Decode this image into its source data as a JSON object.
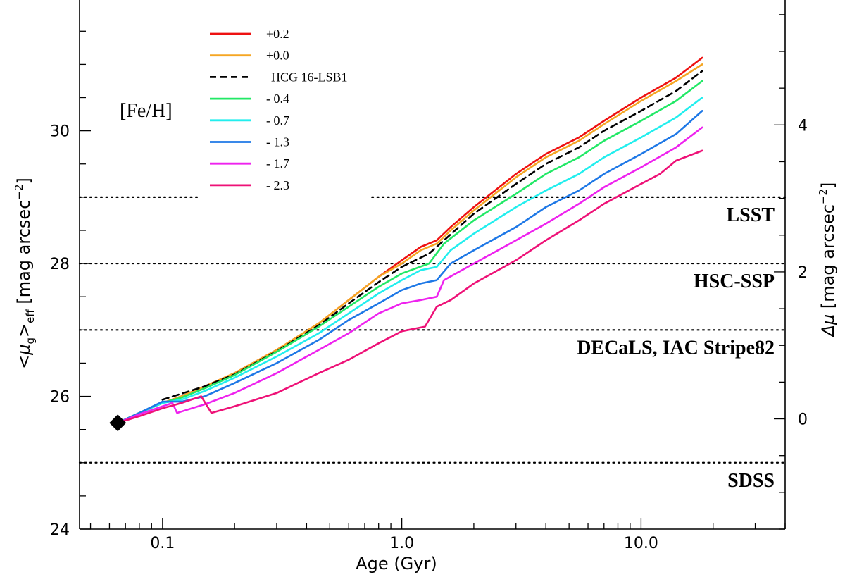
{
  "chart_data": {
    "type": "line",
    "xscale": "log",
    "xlim": [
      0.045,
      40
    ],
    "ylim": [
      24,
      31.97
    ],
    "ylim_right": [
      -1.5,
      5.7
    ],
    "xlabel": "Age (Gyr)",
    "ylabel_parts": {
      "open": "<",
      "mu": "μ",
      "sub1": "g",
      "close": ">",
      "sub2": "eff",
      "unit": " [mag arcsec",
      "sup": "−2",
      "end": "]"
    },
    "y2label_parts": {
      "delta": "Δμ",
      "unit": " [mag arcsec",
      "sup": "−2",
      "end": "]"
    },
    "x_ticks": [
      {
        "value": 0.1,
        "label": "0.1"
      },
      {
        "value": 1.0,
        "label": "1.0"
      },
      {
        "value": 10.0,
        "label": "10.0"
      }
    ],
    "y_ticks": [
      {
        "value": 24,
        "label": "24"
      },
      {
        "value": 26,
        "label": "26"
      },
      {
        "value": 28,
        "label": "28"
      },
      {
        "value": 30,
        "label": "30"
      }
    ],
    "y2_ticks": [
      {
        "value": 0,
        "label": "0"
      },
      {
        "value": 2,
        "label": "2"
      },
      {
        "value": 4,
        "label": "4"
      }
    ],
    "legend_title": "[Fe/H]",
    "survey_limits": [
      {
        "name": "LSST",
        "y": 29,
        "gap": [
          0.14,
          0.75
        ]
      },
      {
        "name": "HSC-SSP",
        "y": 28
      },
      {
        "name": "DECaLS, IAC Stripe82",
        "y": 27
      },
      {
        "name": "SDSS",
        "y": 25
      }
    ],
    "start_marker": {
      "x": 0.065,
      "y": 25.6
    },
    "series": [
      {
        "name": "+0.2",
        "color": "#ee1111",
        "dash": false,
        "points": [
          [
            0.065,
            25.6
          ],
          [
            0.08,
            25.75
          ],
          [
            0.1,
            25.9
          ],
          [
            0.12,
            26.0
          ],
          [
            0.15,
            26.15
          ],
          [
            0.2,
            26.35
          ],
          [
            0.3,
            26.7
          ],
          [
            0.45,
            27.1
          ],
          [
            0.6,
            27.45
          ],
          [
            0.8,
            27.8
          ],
          [
            1.0,
            28.05
          ],
          [
            1.2,
            28.25
          ],
          [
            1.4,
            28.35
          ],
          [
            1.6,
            28.55
          ],
          [
            2.0,
            28.85
          ],
          [
            3.0,
            29.35
          ],
          [
            4.0,
            29.65
          ],
          [
            5.5,
            29.9
          ],
          [
            7.0,
            30.15
          ],
          [
            10.0,
            30.5
          ],
          [
            14.0,
            30.8
          ],
          [
            18.0,
            31.1
          ]
        ]
      },
      {
        "name": "+0.0",
        "color": "#f5a623",
        "dash": false,
        "points": [
          [
            0.065,
            25.6
          ],
          [
            0.08,
            25.75
          ],
          [
            0.1,
            25.9
          ],
          [
            0.12,
            26.0
          ],
          [
            0.15,
            26.15
          ],
          [
            0.2,
            26.35
          ],
          [
            0.3,
            26.7
          ],
          [
            0.45,
            27.1
          ],
          [
            0.6,
            27.45
          ],
          [
            0.8,
            27.8
          ],
          [
            1.0,
            28.0
          ],
          [
            1.2,
            28.2
          ],
          [
            1.4,
            28.3
          ],
          [
            1.6,
            28.5
          ],
          [
            2.0,
            28.8
          ],
          [
            3.0,
            29.3
          ],
          [
            4.0,
            29.6
          ],
          [
            5.5,
            29.85
          ],
          [
            7.0,
            30.1
          ],
          [
            10.0,
            30.45
          ],
          [
            14.0,
            30.75
          ],
          [
            18.0,
            31.0
          ]
        ]
      },
      {
        "name": "HCG 16-LSB1",
        "color": "#000000",
        "dash": true,
        "points": [
          [
            0.1,
            25.95
          ],
          [
            0.15,
            26.15
          ],
          [
            0.2,
            26.33
          ],
          [
            0.3,
            26.68
          ],
          [
            0.45,
            27.07
          ],
          [
            0.6,
            27.4
          ],
          [
            0.8,
            27.72
          ],
          [
            1.0,
            27.95
          ],
          [
            1.3,
            28.15
          ],
          [
            1.5,
            28.35
          ],
          [
            2.0,
            28.75
          ],
          [
            3.0,
            29.2
          ],
          [
            4.0,
            29.5
          ],
          [
            5.5,
            29.75
          ],
          [
            7.0,
            30.0
          ],
          [
            10.0,
            30.3
          ],
          [
            14.0,
            30.6
          ],
          [
            18.0,
            30.9
          ]
        ]
      },
      {
        "name": "- 0.4",
        "color": "#22e866",
        "dash": false,
        "points": [
          [
            0.065,
            25.6
          ],
          [
            0.08,
            25.75
          ],
          [
            0.1,
            25.9
          ],
          [
            0.12,
            25.98
          ],
          [
            0.15,
            26.12
          ],
          [
            0.2,
            26.32
          ],
          [
            0.3,
            26.67
          ],
          [
            0.45,
            27.05
          ],
          [
            0.6,
            27.35
          ],
          [
            0.8,
            27.65
          ],
          [
            1.0,
            27.85
          ],
          [
            1.3,
            28.0
          ],
          [
            1.5,
            28.3
          ],
          [
            2.0,
            28.65
          ],
          [
            3.0,
            29.05
          ],
          [
            4.0,
            29.35
          ],
          [
            5.5,
            29.6
          ],
          [
            7.0,
            29.85
          ],
          [
            10.0,
            30.15
          ],
          [
            14.0,
            30.45
          ],
          [
            18.0,
            30.75
          ]
        ]
      },
      {
        "name": "- 0.7",
        "color": "#22eeee",
        "dash": false,
        "points": [
          [
            0.065,
            25.6
          ],
          [
            0.08,
            25.75
          ],
          [
            0.1,
            25.9
          ],
          [
            0.12,
            25.95
          ],
          [
            0.15,
            26.08
          ],
          [
            0.2,
            26.28
          ],
          [
            0.3,
            26.6
          ],
          [
            0.45,
            26.95
          ],
          [
            0.6,
            27.25
          ],
          [
            0.8,
            27.55
          ],
          [
            1.0,
            27.75
          ],
          [
            1.2,
            27.9
          ],
          [
            1.4,
            27.95
          ],
          [
            1.6,
            28.2
          ],
          [
            2.0,
            28.45
          ],
          [
            3.0,
            28.85
          ],
          [
            4.0,
            29.1
          ],
          [
            5.5,
            29.35
          ],
          [
            7.0,
            29.6
          ],
          [
            10.0,
            29.9
          ],
          [
            14.0,
            30.2
          ],
          [
            18.0,
            30.5
          ]
        ]
      },
      {
        "name": "- 1.3",
        "color": "#1e78e6",
        "dash": false,
        "points": [
          [
            0.065,
            25.6
          ],
          [
            0.08,
            25.75
          ],
          [
            0.1,
            25.92
          ],
          [
            0.12,
            25.92
          ],
          [
            0.15,
            26.0
          ],
          [
            0.2,
            26.2
          ],
          [
            0.3,
            26.5
          ],
          [
            0.45,
            26.85
          ],
          [
            0.6,
            27.15
          ],
          [
            0.8,
            27.4
          ],
          [
            1.0,
            27.6
          ],
          [
            1.2,
            27.7
          ],
          [
            1.4,
            27.75
          ],
          [
            1.6,
            28.0
          ],
          [
            2.0,
            28.2
          ],
          [
            3.0,
            28.55
          ],
          [
            4.0,
            28.85
          ],
          [
            5.5,
            29.1
          ],
          [
            7.0,
            29.35
          ],
          [
            10.0,
            29.65
          ],
          [
            14.0,
            29.95
          ],
          [
            18.0,
            30.3
          ]
        ]
      },
      {
        "name": "- 1.7",
        "color": "#ee22ee",
        "dash": false,
        "points": [
          [
            0.065,
            25.6
          ],
          [
            0.08,
            25.73
          ],
          [
            0.1,
            25.85
          ],
          [
            0.11,
            25.9
          ],
          [
            0.115,
            25.75
          ],
          [
            0.15,
            25.88
          ],
          [
            0.2,
            26.05
          ],
          [
            0.3,
            26.35
          ],
          [
            0.45,
            26.7
          ],
          [
            0.6,
            26.95
          ],
          [
            0.8,
            27.25
          ],
          [
            1.0,
            27.4
          ],
          [
            1.2,
            27.45
          ],
          [
            1.4,
            27.5
          ],
          [
            1.5,
            27.75
          ],
          [
            2.0,
            28.0
          ],
          [
            3.0,
            28.35
          ],
          [
            4.0,
            28.6
          ],
          [
            5.5,
            28.9
          ],
          [
            7.0,
            29.15
          ],
          [
            10.0,
            29.45
          ],
          [
            14.0,
            29.75
          ],
          [
            18.0,
            30.05
          ]
        ]
      },
      {
        "name": "- 2.3",
        "color": "#ee1177",
        "dash": false,
        "points": [
          [
            0.065,
            25.6
          ],
          [
            0.08,
            25.7
          ],
          [
            0.1,
            25.82
          ],
          [
            0.12,
            25.9
          ],
          [
            0.145,
            26.0
          ],
          [
            0.16,
            25.75
          ],
          [
            0.2,
            25.85
          ],
          [
            0.3,
            26.05
          ],
          [
            0.45,
            26.35
          ],
          [
            0.6,
            26.55
          ],
          [
            0.8,
            26.8
          ],
          [
            1.0,
            26.98
          ],
          [
            1.25,
            27.05
          ],
          [
            1.4,
            27.35
          ],
          [
            1.6,
            27.45
          ],
          [
            2.0,
            27.7
          ],
          [
            3.0,
            28.05
          ],
          [
            4.0,
            28.35
          ],
          [
            5.5,
            28.65
          ],
          [
            7.0,
            28.9
          ],
          [
            10.0,
            29.2
          ],
          [
            12.0,
            29.35
          ],
          [
            14.0,
            29.55
          ],
          [
            18.0,
            29.7
          ]
        ]
      }
    ]
  }
}
